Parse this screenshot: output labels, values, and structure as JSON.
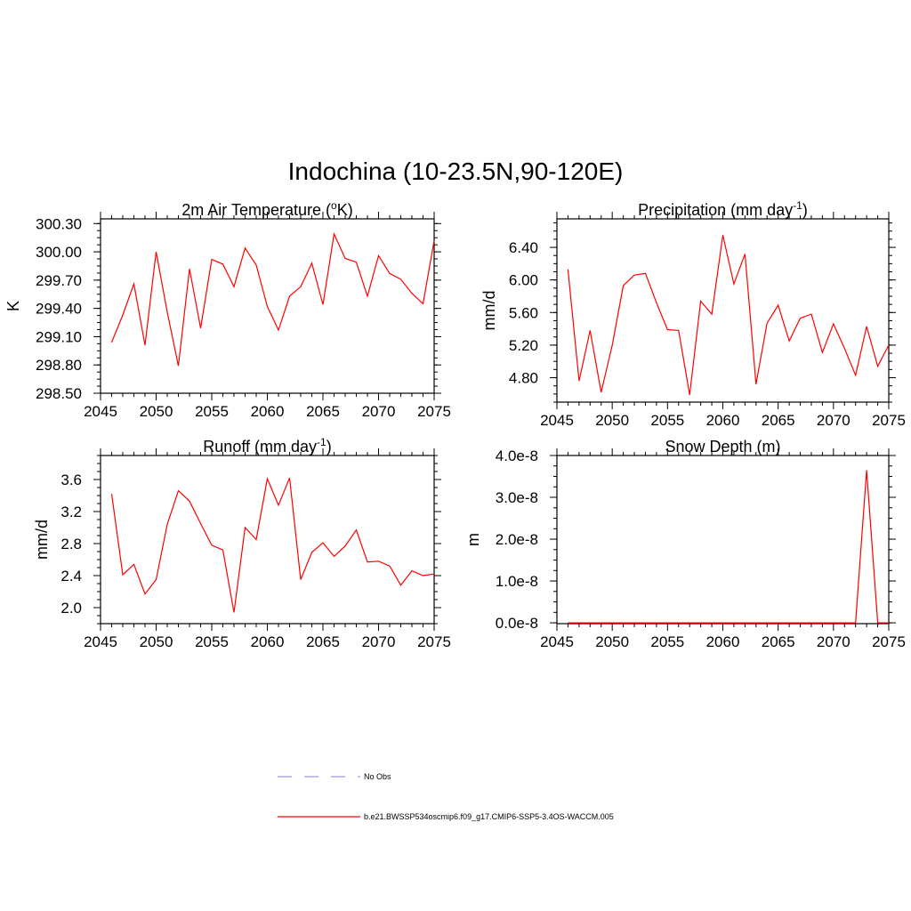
{
  "title": "Indochina (10-23.5N,90-120E)",
  "chart_data": [
    {
      "type": "line",
      "title": "2m Air Temperature (",
      "title_sup": "o",
      "title_tail": "K)",
      "ylabel": "K",
      "xlim": [
        2045,
        2075
      ],
      "ylim": [
        298.5,
        300.35
      ],
      "xticks": [
        2045,
        2050,
        2055,
        2060,
        2065,
        2070,
        2075
      ],
      "xtick_labels": [
        "2045",
        "2050",
        "2055",
        "2060",
        "2065",
        "2070",
        "2075"
      ],
      "yticks": [
        298.5,
        298.8,
        299.1,
        299.4,
        299.7,
        300.0,
        300.3
      ],
      "ytick_labels": [
        "298.50",
        "298.80",
        "299.10",
        "299.40",
        "299.70",
        "300.00",
        "300.30"
      ],
      "series": [
        {
          "name": "b.e21.BWSSP534oscmip6.f09_g17.CMIP6-SSP5-3.4OS-WACCM.005",
          "color": "#ff0000",
          "x": [
            2046,
            2047,
            2048,
            2049,
            2050,
            2051,
            2052,
            2053,
            2054,
            2055,
            2056,
            2057,
            2058,
            2059,
            2060,
            2061,
            2062,
            2063,
            2064,
            2065,
            2066,
            2067,
            2068,
            2069,
            2070,
            2071,
            2072,
            2073,
            2074,
            2075
          ],
          "values": [
            299.04,
            299.33,
            299.66,
            299.01,
            300.0,
            299.36,
            298.79,
            299.82,
            299.19,
            299.92,
            299.87,
            299.63,
            300.04,
            299.86,
            299.42,
            299.17,
            299.53,
            299.63,
            299.88,
            299.44,
            300.19,
            299.93,
            299.89,
            299.53,
            299.96,
            299.77,
            299.71,
            299.56,
            299.45,
            300.12
          ]
        }
      ]
    },
    {
      "type": "line",
      "title": "Precipitation (mm day",
      "title_sup": "-1",
      "title_tail": ")",
      "ylabel": "mm/d",
      "xlim": [
        2045,
        2075
      ],
      "ylim": [
        4.5,
        6.75
      ],
      "xticks": [
        2045,
        2050,
        2055,
        2060,
        2065,
        2070,
        2075
      ],
      "xtick_labels": [
        "2045",
        "2050",
        "2055",
        "2060",
        "2065",
        "2070",
        "2075"
      ],
      "yticks": [
        4.8,
        5.2,
        5.6,
        6.0,
        6.4
      ],
      "ytick_labels": [
        "4.80",
        "5.20",
        "5.60",
        "6.00",
        "6.40"
      ],
      "series": [
        {
          "name": "b.e21.BWSSP534oscmip6.f09_g17.CMIP6-SSP5-3.4OS-WACCM.005",
          "color": "#ff0000",
          "x": [
            2046,
            2047,
            2048,
            2049,
            2050,
            2051,
            2052,
            2053,
            2054,
            2055,
            2056,
            2057,
            2058,
            2059,
            2060,
            2061,
            2062,
            2063,
            2064,
            2065,
            2066,
            2067,
            2068,
            2069,
            2070,
            2071,
            2072,
            2073,
            2074,
            2075
          ],
          "values": [
            6.13,
            4.76,
            5.38,
            4.62,
            5.2,
            5.93,
            6.06,
            6.08,
            5.72,
            5.39,
            5.38,
            4.59,
            5.74,
            5.58,
            6.55,
            5.95,
            6.32,
            4.72,
            5.47,
            5.69,
            5.25,
            5.53,
            5.58,
            5.11,
            5.46,
            5.16,
            4.83,
            5.43,
            4.94,
            5.2
          ]
        }
      ]
    },
    {
      "type": "line",
      "title": "Runoff (mm day",
      "title_sup": "-1",
      "title_tail": ")",
      "ylabel": "mm/d",
      "xlim": [
        2045,
        2075
      ],
      "ylim": [
        1.8,
        3.9
      ],
      "xticks": [
        2045,
        2050,
        2055,
        2060,
        2065,
        2070,
        2075
      ],
      "xtick_labels": [
        "2045",
        "2050",
        "2055",
        "2060",
        "2065",
        "2070",
        "2075"
      ],
      "yticks": [
        2.0,
        2.4,
        2.8,
        3.2,
        3.6
      ],
      "ytick_labels": [
        "2.0",
        "2.4",
        "2.8",
        "3.2",
        "3.6"
      ],
      "series": [
        {
          "name": "b.e21.BWSSP534oscmip6.f09_g17.CMIP6-SSP5-3.4OS-WACCM.005",
          "color": "#ff0000",
          "x": [
            2046,
            2047,
            2048,
            2049,
            2050,
            2051,
            2052,
            2053,
            2054,
            2055,
            2056,
            2057,
            2058,
            2059,
            2060,
            2061,
            2062,
            2063,
            2064,
            2065,
            2066,
            2067,
            2068,
            2069,
            2070,
            2071,
            2072,
            2073,
            2074,
            2075
          ],
          "values": [
            3.42,
            2.41,
            2.54,
            2.17,
            2.35,
            3.04,
            3.46,
            3.33,
            3.05,
            2.78,
            2.72,
            1.94,
            3.0,
            2.85,
            3.61,
            3.28,
            3.62,
            2.35,
            2.69,
            2.81,
            2.64,
            2.77,
            2.97,
            2.57,
            2.58,
            2.52,
            2.28,
            2.46,
            2.4,
            2.42
          ]
        }
      ]
    },
    {
      "type": "line",
      "title": "Snow Depth (m)",
      "title_sup": "",
      "title_tail": "",
      "ylabel": "m",
      "xlim": [
        2045,
        2075
      ],
      "ylim": [
        -2e-10,
        4e-08
      ],
      "xticks": [
        2045,
        2050,
        2055,
        2060,
        2065,
        2070,
        2075
      ],
      "xtick_labels": [
        "2045",
        "2050",
        "2055",
        "2060",
        "2065",
        "2070",
        "2075"
      ],
      "yticks": [
        0.0,
        1e-08,
        2e-08,
        3e-08,
        4e-08
      ],
      "ytick_labels": [
        "0.0e-8",
        "1.0e-8",
        "2.0e-8",
        "3.0e-8",
        "4.0e-8"
      ],
      "series": [
        {
          "name": "b.e21.BWSSP534oscmip6.f09_g17.CMIP6-SSP5-3.4OS-WACCM.005",
          "color": "#ff0000",
          "x": [
            2046,
            2047,
            2048,
            2049,
            2050,
            2051,
            2052,
            2053,
            2054,
            2055,
            2056,
            2057,
            2058,
            2059,
            2060,
            2061,
            2062,
            2063,
            2064,
            2065,
            2066,
            2067,
            2068,
            2069,
            2070,
            2071,
            2072,
            2073,
            2074,
            2075
          ],
          "values": [
            0,
            0,
            0,
            0,
            0,
            0,
            0,
            0,
            0,
            0,
            0,
            0,
            0,
            0,
            0,
            0,
            0,
            0,
            0,
            0,
            0,
            0,
            0,
            0,
            0,
            0,
            0,
            3.65e-08,
            0,
            0
          ]
        }
      ]
    }
  ],
  "legend": {
    "items": [
      {
        "label": "No Obs",
        "color": "#9999dd",
        "style": "dashed"
      },
      {
        "label": "b.e21.BWSSP534oscmip6.f09_g17.CMIP6-SSP5-3.4OS-WACCM.005",
        "color": "#ff0000",
        "style": "solid"
      }
    ]
  }
}
